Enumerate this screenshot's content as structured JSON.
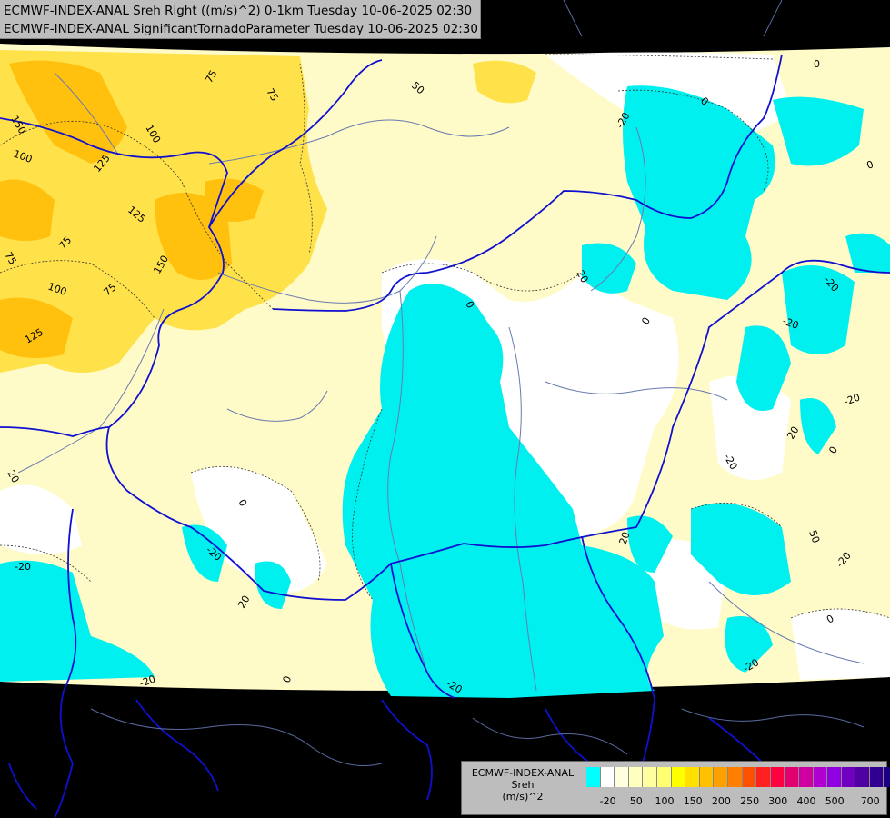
{
  "titles": {
    "line1": "ECMWF-INDEX-ANAL Sreh Right ((m/s)^2) 0-1km Tuesday 10-06-2025 02:30",
    "line2": "ECMWF-INDEX-ANAL SignificantTornadoParameter Tuesday 10-06-2025 02:30"
  },
  "legend": {
    "model": "ECMWF-INDEX-ANAL",
    "param": "Sreh",
    "units": "(m/s)^2",
    "colors": [
      "#00ffff",
      "#ffffff",
      "#ffffe0",
      "#ffffc0",
      "#ffffa0",
      "#ffff70",
      "#ffff00",
      "#ffe000",
      "#ffc000",
      "#ffa000",
      "#ff7f00",
      "#ff5000",
      "#ff2020",
      "#ff0040",
      "#e00070",
      "#d000a0",
      "#b000d0",
      "#9000e0",
      "#7000c0",
      "#5000a0",
      "#300090",
      "#1a0080"
    ],
    "ticks": [
      "-20",
      "50",
      "100",
      "150",
      "200",
      "250",
      "300",
      "400",
      "500",
      "700"
    ]
  },
  "contour_labels": [
    "150",
    "100",
    "75",
    "75",
    "125",
    "100",
    "125",
    "150",
    "75",
    "75",
    "100",
    "75",
    "125",
    "50",
    "0",
    "0",
    "-20",
    "0",
    "-20",
    "20",
    "0",
    "0",
    "-20",
    "20",
    "-20",
    "-20",
    "50",
    "0",
    "-20",
    "20",
    "0",
    "-20",
    "-20",
    "20",
    "-20",
    "0",
    "20",
    "-20",
    "0",
    "-20"
  ],
  "colors": {
    "background": "#000000",
    "border_country": "#1010d0",
    "rivers": "#6a7ab0",
    "cyan": "#00f0f0",
    "pale_yellow": "#fffbc8",
    "yellow": "#ffe14a",
    "orange": "#ffc10d"
  }
}
